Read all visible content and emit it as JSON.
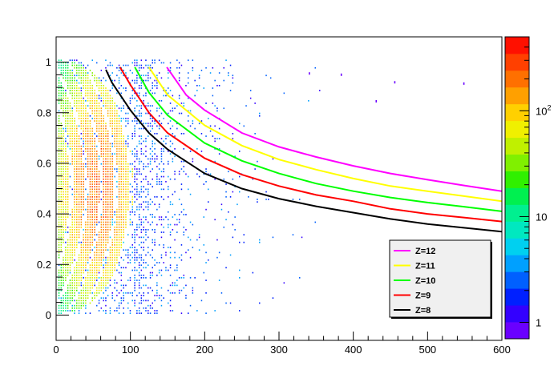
{
  "chart_data": {
    "type": "heatmap",
    "title": "",
    "xlabel": "",
    "ylabel": "",
    "xlim": [
      0,
      600
    ],
    "ylim": [
      -0.1,
      1.1
    ],
    "x_ticks": [
      0,
      100,
      200,
      300,
      400,
      500,
      600
    ],
    "y_ticks": [
      0,
      0.2,
      0.4,
      0.6,
      0.8,
      1
    ],
    "x_tick_labels": [
      "0",
      "100",
      "200",
      "300",
      "400",
      "500",
      "600"
    ],
    "y_tick_labels": [
      "0",
      "0.2",
      "0.4",
      "0.6",
      "0.8",
      "1"
    ],
    "colorbar": {
      "scale": "log",
      "range": [
        0.7,
        500
      ],
      "tick_labels": [
        "1",
        "10",
        "10^2"
      ],
      "tick_values": [
        1,
        10,
        100
      ]
    },
    "density_summary": {
      "dense_region_x": [
        0,
        105
      ],
      "dense_region_y": [
        0,
        1
      ],
      "peak_counts": 300,
      "sparse_tail_x": [
        105,
        400
      ]
    },
    "legend": {
      "position": "bottom-right",
      "entries": [
        "Z=12",
        "Z=11",
        "Z=10",
        "Z=9",
        "Z=8"
      ]
    },
    "series": [
      {
        "name": "Z=12",
        "color": "#ff00ff",
        "x": [
          149,
          175,
          200,
          250,
          300,
          350,
          400,
          450,
          500,
          550,
          600
        ],
        "y": [
          0.98,
          0.87,
          0.81,
          0.72,
          0.665,
          0.625,
          0.59,
          0.56,
          0.535,
          0.512,
          0.49
        ]
      },
      {
        "name": "Z=11",
        "color": "#ffff00",
        "x": [
          125,
          150,
          200,
          250,
          300,
          350,
          400,
          450,
          500,
          550,
          600
        ],
        "y": [
          0.98,
          0.87,
          0.75,
          0.67,
          0.615,
          0.575,
          0.54,
          0.51,
          0.49,
          0.47,
          0.45
        ]
      },
      {
        "name": "Z=10",
        "color": "#00ff00",
        "x": [
          106,
          125,
          150,
          200,
          250,
          300,
          350,
          400,
          450,
          500,
          550,
          600
        ],
        "y": [
          0.98,
          0.88,
          0.79,
          0.68,
          0.61,
          0.56,
          0.52,
          0.49,
          0.465,
          0.445,
          0.428,
          0.41
        ]
      },
      {
        "name": "Z=9",
        "color": "#ff0000",
        "x": [
          86,
          100,
          125,
          150,
          200,
          250,
          300,
          350,
          400,
          450,
          500,
          550,
          600
        ],
        "y": [
          0.98,
          0.91,
          0.8,
          0.72,
          0.62,
          0.555,
          0.51,
          0.475,
          0.45,
          0.42,
          0.4,
          0.385,
          0.37
        ]
      },
      {
        "name": "Z=8",
        "color": "#000000",
        "x": [
          67,
          75,
          100,
          125,
          150,
          200,
          250,
          300,
          350,
          400,
          450,
          500,
          550,
          600
        ],
        "y": [
          0.97,
          0.92,
          0.81,
          0.72,
          0.655,
          0.56,
          0.5,
          0.46,
          0.43,
          0.405,
          0.38,
          0.36,
          0.345,
          0.33
        ]
      }
    ]
  }
}
